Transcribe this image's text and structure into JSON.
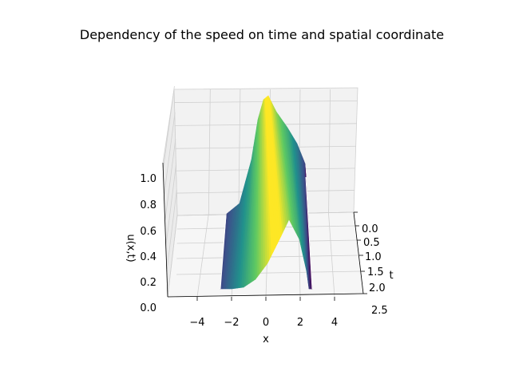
{
  "chart_data": {
    "type": "surface",
    "title": "Dependency of the speed on time and spatial coordinate",
    "xlabel": "x",
    "ylabel": "t",
    "zlabel": "u(x,t)",
    "x_ticks": [
      "−4",
      "−2",
      "0",
      "2",
      "4"
    ],
    "t_ticks": [
      "0.0",
      "0.5",
      "1.0",
      "1.5",
      "2.0",
      "2.5"
    ],
    "z_ticks": [
      "0.0",
      "0.2",
      "0.4",
      "0.6",
      "0.8",
      "1.0"
    ],
    "xlim": [
      -5,
      5
    ],
    "tlim": [
      0,
      2.5
    ],
    "zlim": [
      0,
      1.1
    ],
    "colormap": "viridis",
    "grid": true,
    "surface_profile": {
      "x": [
        -2.3,
        -2.0,
        -1.5,
        -1.0,
        -0.5,
        0.0,
        0.5,
        1.0,
        1.5,
        2.0,
        2.3
      ],
      "u_at_t0": [
        0.0,
        0.1,
        0.3,
        0.52,
        0.78,
        1.0,
        0.9,
        0.72,
        0.55,
        0.35,
        0.0
      ],
      "u_at_t2": [
        0.0,
        0.0,
        0.0,
        0.0,
        0.0,
        0.0,
        0.03,
        0.1,
        0.25,
        0.45,
        0.0
      ]
    }
  }
}
